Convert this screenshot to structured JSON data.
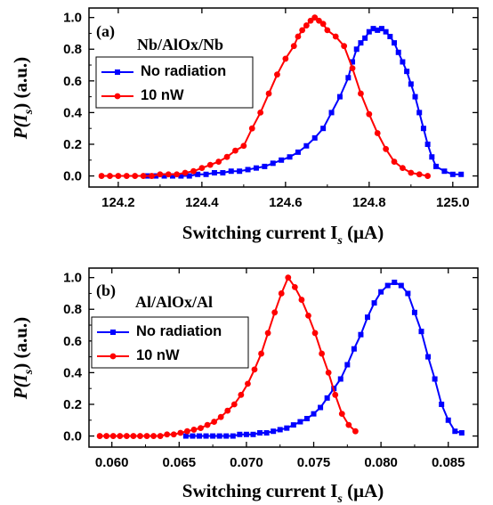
{
  "chart_data": [
    {
      "type": "line",
      "panel_label": "(a)",
      "annotation": "Nb/AlOx/Nb",
      "xlabel": "Switching current I",
      "xlabel_sub": "s",
      "xlabel_unit": " (μA)",
      "ylabel": "P(I",
      "ylabel_sub": "s",
      "ylabel_tail": ") (a.u.)",
      "xlim": [
        124.13,
        125.06
      ],
      "ylim": [
        -0.07,
        1.06
      ],
      "xticks": [
        124.2,
        124.4,
        124.6,
        124.8,
        125.0
      ],
      "xtick_labels": [
        "124.2",
        "124.4",
        "124.6",
        "124.8",
        "125.0"
      ],
      "yticks": [
        0.0,
        0.2,
        0.4,
        0.6,
        0.8,
        1.0
      ],
      "ytick_labels": [
        "0.0",
        "0.2",
        "0.4",
        "0.6",
        "0.8",
        "1.0"
      ],
      "legend_position": "upper-left",
      "series": [
        {
          "name": "No radiation",
          "color": "#0000ff",
          "marker": "square",
          "x": [
            124.27,
            124.29,
            124.31,
            124.33,
            124.35,
            124.37,
            124.39,
            124.41,
            124.43,
            124.45,
            124.47,
            124.49,
            124.51,
            124.53,
            124.55,
            124.57,
            124.59,
            124.61,
            124.63,
            124.65,
            124.67,
            124.69,
            124.71,
            124.73,
            124.75,
            124.76,
            124.77,
            124.78,
            124.79,
            124.8,
            124.81,
            124.82,
            124.83,
            124.84,
            124.85,
            124.86,
            124.87,
            124.88,
            124.89,
            124.9,
            124.91,
            124.92,
            124.93,
            124.94,
            124.95,
            124.96,
            124.98,
            125.0,
            125.02
          ],
          "y": [
            0.0,
            0.0,
            0.0,
            0.0,
            0.0,
            0.0,
            0.01,
            0.01,
            0.02,
            0.02,
            0.03,
            0.03,
            0.04,
            0.05,
            0.06,
            0.08,
            0.1,
            0.12,
            0.15,
            0.19,
            0.24,
            0.3,
            0.4,
            0.5,
            0.62,
            0.72,
            0.8,
            0.84,
            0.87,
            0.91,
            0.93,
            0.92,
            0.93,
            0.91,
            0.88,
            0.84,
            0.78,
            0.72,
            0.66,
            0.58,
            0.5,
            0.4,
            0.3,
            0.2,
            0.12,
            0.06,
            0.03,
            0.01,
            0.01
          ]
        },
        {
          "name": "10 nW",
          "color": "#ff0000",
          "marker": "circle",
          "x": [
            124.16,
            124.18,
            124.2,
            124.22,
            124.24,
            124.26,
            124.28,
            124.3,
            124.32,
            124.34,
            124.36,
            124.38,
            124.4,
            124.42,
            124.44,
            124.46,
            124.48,
            124.5,
            124.52,
            124.54,
            124.56,
            124.58,
            124.6,
            124.62,
            124.63,
            124.64,
            124.65,
            124.66,
            124.67,
            124.68,
            124.69,
            124.7,
            124.72,
            124.74,
            124.76,
            124.78,
            124.8,
            124.82,
            124.84,
            124.86,
            124.88,
            124.9,
            124.92,
            124.94
          ],
          "y": [
            0.0,
            0.0,
            0.0,
            0.0,
            0.0,
            0.0,
            0.0,
            0.01,
            0.01,
            0.01,
            0.02,
            0.03,
            0.05,
            0.07,
            0.09,
            0.12,
            0.16,
            0.19,
            0.3,
            0.4,
            0.52,
            0.64,
            0.74,
            0.82,
            0.88,
            0.92,
            0.95,
            0.98,
            1.0,
            0.98,
            0.96,
            0.92,
            0.88,
            0.82,
            0.68,
            0.52,
            0.39,
            0.27,
            0.17,
            0.09,
            0.05,
            0.02,
            0.01,
            0.0
          ]
        }
      ]
    },
    {
      "type": "line",
      "panel_label": "(b)",
      "annotation": "Al/AlOx/Al",
      "xlabel": "Switching current I",
      "xlabel_sub": "s",
      "xlabel_unit": " (μA)",
      "ylabel": "P(I",
      "ylabel_sub": "s",
      "ylabel_tail": ") (a.u.)",
      "xlim": [
        0.0583,
        0.0872
      ],
      "ylim": [
        -0.07,
        1.06
      ],
      "xticks": [
        0.06,
        0.065,
        0.07,
        0.075,
        0.08,
        0.085
      ],
      "xtick_labels": [
        "0.060",
        "0.065",
        "0.070",
        "0.075",
        "0.080",
        "0.085"
      ],
      "yticks": [
        0.0,
        0.2,
        0.4,
        0.6,
        0.8,
        1.0
      ],
      "ytick_labels": [
        "0.0",
        "0.2",
        "0.4",
        "0.6",
        "0.8",
        "1.0"
      ],
      "legend_position": "upper-left",
      "series": [
        {
          "name": "No radiation",
          "color": "#0000ff",
          "marker": "square",
          "x": [
            0.0655,
            0.066,
            0.0665,
            0.067,
            0.0675,
            0.068,
            0.0685,
            0.069,
            0.0695,
            0.07,
            0.0705,
            0.071,
            0.0715,
            0.072,
            0.0725,
            0.073,
            0.0735,
            0.074,
            0.0745,
            0.075,
            0.0755,
            0.076,
            0.0765,
            0.077,
            0.0775,
            0.078,
            0.0785,
            0.079,
            0.0795,
            0.08,
            0.0805,
            0.081,
            0.0815,
            0.082,
            0.0825,
            0.083,
            0.0835,
            0.084,
            0.0845,
            0.085,
            0.0855,
            0.086
          ],
          "y": [
            0.0,
            0.0,
            0.0,
            0.0,
            0.0,
            0.0,
            0.0,
            0.0,
            0.01,
            0.01,
            0.01,
            0.02,
            0.02,
            0.03,
            0.04,
            0.05,
            0.07,
            0.09,
            0.11,
            0.14,
            0.18,
            0.24,
            0.3,
            0.36,
            0.45,
            0.55,
            0.64,
            0.75,
            0.84,
            0.91,
            0.95,
            0.97,
            0.95,
            0.9,
            0.78,
            0.66,
            0.5,
            0.36,
            0.2,
            0.1,
            0.03,
            0.02
          ]
        },
        {
          "name": "10 nW",
          "color": "#ff0000",
          "marker": "circle",
          "x": [
            0.0591,
            0.0596,
            0.0601,
            0.0606,
            0.0611,
            0.0616,
            0.0621,
            0.0626,
            0.0631,
            0.0636,
            0.0641,
            0.0646,
            0.0651,
            0.0656,
            0.0661,
            0.0666,
            0.0671,
            0.0676,
            0.0681,
            0.0686,
            0.0691,
            0.0696,
            0.0701,
            0.0706,
            0.0711,
            0.0716,
            0.0721,
            0.0726,
            0.0731,
            0.0736,
            0.0741,
            0.0746,
            0.0751,
            0.0756,
            0.0761,
            0.0766,
            0.0771,
            0.0776,
            0.0781
          ],
          "y": [
            0.0,
            0.0,
            0.0,
            0.0,
            0.0,
            0.0,
            0.0,
            0.0,
            0.0,
            0.0,
            0.01,
            0.01,
            0.02,
            0.03,
            0.04,
            0.05,
            0.07,
            0.09,
            0.12,
            0.16,
            0.2,
            0.26,
            0.33,
            0.42,
            0.52,
            0.65,
            0.78,
            0.9,
            1.0,
            0.94,
            0.86,
            0.76,
            0.65,
            0.52,
            0.4,
            0.26,
            0.14,
            0.07,
            0.03
          ]
        }
      ]
    }
  ]
}
